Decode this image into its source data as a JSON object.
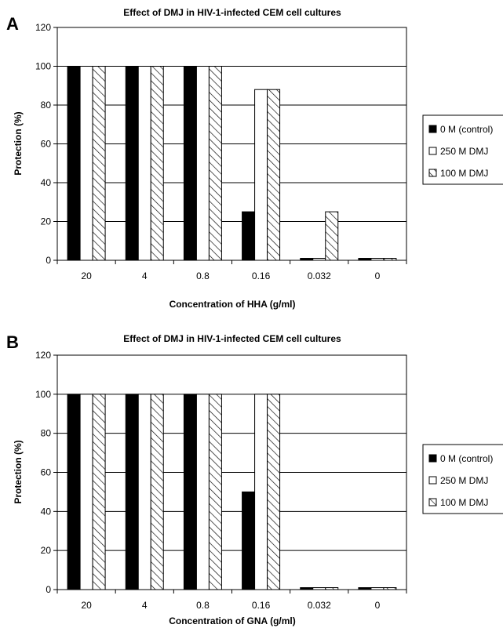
{
  "chart_data": [
    {
      "type": "bar",
      "panel": "A",
      "title": "Effect of DMJ in HIV-1-infected CEM cell cultures",
      "xlabel": "Concentration of HHA (g/ml)",
      "ylabel": "Protection (%)",
      "ylim": [
        0,
        120
      ],
      "yticks": [
        0,
        20,
        40,
        60,
        80,
        100,
        120
      ],
      "categories": [
        "20",
        "4",
        "0.8",
        "0.16",
        "0.032",
        "0"
      ],
      "grid": true,
      "legend_position": "right",
      "series": [
        {
          "name": "0 M (control)",
          "pattern": "solid-black",
          "values": [
            100,
            100,
            100,
            25,
            1,
            1
          ]
        },
        {
          "name": "250 M DMJ",
          "pattern": "white",
          "values": [
            100,
            100,
            100,
            88,
            1,
            1
          ]
        },
        {
          "name": "100 M DMJ",
          "pattern": "hatched",
          "values": [
            100,
            100,
            100,
            88,
            25,
            1
          ]
        }
      ]
    },
    {
      "type": "bar",
      "panel": "B",
      "title": "Effect of DMJ in HIV-1-infected CEM cell cultures",
      "xlabel": "Concentration of GNA (g/ml)",
      "ylabel": "Protection (%)",
      "ylim": [
        0,
        120
      ],
      "yticks": [
        0,
        20,
        40,
        60,
        80,
        100,
        120
      ],
      "categories": [
        "20",
        "4",
        "0.8",
        "0.16",
        "0.032",
        "0"
      ],
      "grid": true,
      "legend_position": "right",
      "series": [
        {
          "name": "0 M (control)",
          "pattern": "solid-black",
          "values": [
            100,
            100,
            100,
            50,
            1,
            1
          ]
        },
        {
          "name": "250 M DMJ",
          "pattern": "white",
          "values": [
            100,
            100,
            100,
            100,
            1,
            1
          ]
        },
        {
          "name": "100 M DMJ",
          "pattern": "hatched",
          "values": [
            100,
            100,
            100,
            100,
            1,
            1
          ]
        }
      ]
    }
  ]
}
